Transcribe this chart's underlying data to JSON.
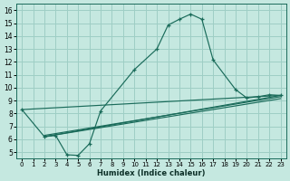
{
  "xlabel": "Humidex (Indice chaleur)",
  "bg_color": "#c5e8e0",
  "grid_color": "#9ecec5",
  "line_color": "#1a6b5a",
  "xlim": [
    -0.5,
    23.5
  ],
  "ylim": [
    4.5,
    16.5
  ],
  "xticks": [
    0,
    1,
    2,
    3,
    4,
    5,
    6,
    7,
    8,
    9,
    10,
    11,
    12,
    13,
    14,
    15,
    16,
    17,
    18,
    19,
    20,
    21,
    22,
    23
  ],
  "yticks": [
    5,
    6,
    7,
    8,
    9,
    10,
    11,
    12,
    13,
    14,
    15,
    16
  ],
  "main_x": [
    0,
    2,
    3,
    4,
    5,
    6,
    7,
    10,
    12,
    13,
    14,
    15,
    16,
    17,
    19,
    20,
    21,
    22,
    23
  ],
  "main_y": [
    8.3,
    6.2,
    6.3,
    4.8,
    4.75,
    5.65,
    8.2,
    11.4,
    13.0,
    14.85,
    15.3,
    15.7,
    15.3,
    12.15,
    9.85,
    9.2,
    9.3,
    9.45,
    9.4
  ],
  "line1_x": [
    0,
    23
  ],
  "line1_y": [
    8.3,
    9.4
  ],
  "line2_x": [
    2,
    23
  ],
  "line2_y": [
    6.2,
    9.4
  ],
  "line3_x": [
    2,
    23
  ],
  "line3_y": [
    6.3,
    9.3
  ],
  "line4_x": [
    2,
    23
  ],
  "line4_y": [
    6.2,
    9.15
  ]
}
